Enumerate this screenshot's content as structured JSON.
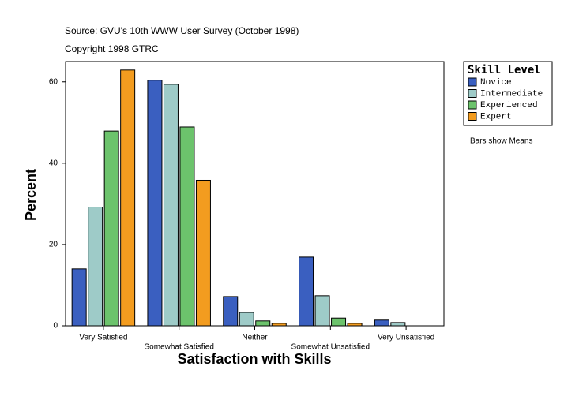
{
  "chart_data": {
    "type": "bar",
    "source": "Source: GVU's 10th WWW User Survey (October 1998)",
    "copyright": "Copyright 1998 GTRC",
    "x_label": "Satisfaction with Skills",
    "y_label": "Percent",
    "note": "Bars show Means",
    "legend_title": "Skill Level",
    "categories": [
      "Very Satisfied",
      "Somewhat Satisfied",
      "Neither",
      "Somewhat Unsatisfied",
      "Very Unsatisfied"
    ],
    "series": [
      {
        "name": "Novice",
        "color": "#3a5fc0",
        "values": [
          14.0,
          60.4,
          7.2,
          16.9,
          1.4
        ]
      },
      {
        "name": "Intermediate",
        "color": "#9ecbc8",
        "values": [
          29.2,
          59.4,
          3.3,
          7.4,
          0.8
        ]
      },
      {
        "name": "Experienced",
        "color": "#6cc36c",
        "values": [
          47.9,
          48.9,
          1.2,
          1.9,
          null
        ]
      },
      {
        "name": "Expert",
        "color": "#f39c1f",
        "values": [
          62.9,
          35.8,
          0.6,
          0.6,
          null
        ]
      }
    ],
    "ylim": [
      0,
      65
    ],
    "yticks": [
      0,
      20,
      40,
      60
    ],
    "grid": false,
    "legend": "right"
  }
}
